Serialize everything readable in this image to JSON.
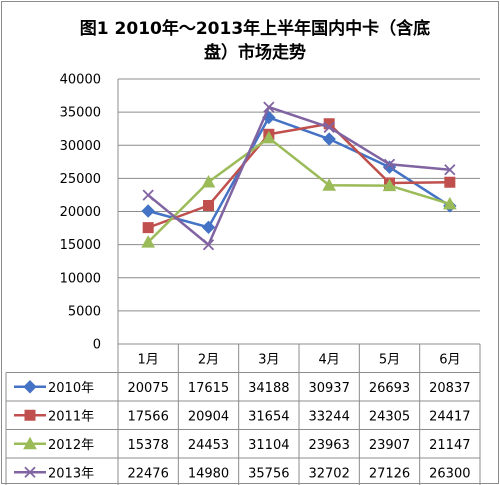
{
  "chart_data": {
    "type": "line",
    "title_line1": "图1   2010年～2013年上半年国内中卡（含底",
    "title_line2": "盘）市场走势",
    "categories": [
      "1月",
      "2月",
      "3月",
      "4月",
      "5月",
      "6月"
    ],
    "ylim": [
      0,
      40000
    ],
    "yticks": [
      "0",
      "5000",
      "10000",
      "15000",
      "20000",
      "25000",
      "30000",
      "35000",
      "40000"
    ],
    "grid": true,
    "legend": "data-table",
    "series": [
      {
        "name": "2010年",
        "color": "#4472C4",
        "marker": "diamond",
        "values": [
          20075,
          17615,
          34188,
          30937,
          26693,
          20837
        ]
      },
      {
        "name": "2011年",
        "color": "#C0504D",
        "marker": "square",
        "values": [
          17566,
          20904,
          31654,
          33244,
          24305,
          24417
        ]
      },
      {
        "name": "2012年",
        "color": "#9BBB59",
        "marker": "triangle",
        "values": [
          15378,
          24453,
          31104,
          23963,
          23907,
          21147
        ]
      },
      {
        "name": "2013年",
        "color": "#8064A2",
        "marker": "cross",
        "values": [
          22476,
          14980,
          35756,
          32702,
          27126,
          26300
        ]
      }
    ]
  }
}
